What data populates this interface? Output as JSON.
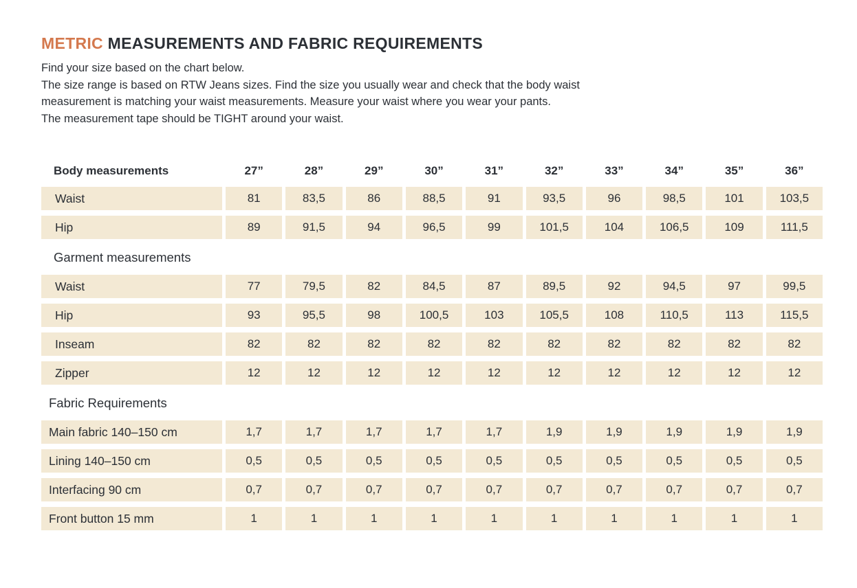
{
  "colors": {
    "accent": "#d4794e",
    "cell_background": "#f3e9d4",
    "text": "#2c3036"
  },
  "header": {
    "title_accent": "METRIC",
    "title_rest": " MEASUREMENTS AND FABRIC REQUIREMENTS",
    "intro_lines": [
      "Find your size based on the chart below.",
      "The size range is based on RTW Jeans sizes. Find the size you usually wear and check that the body waist",
      "measurement is matching your waist measurements. Measure your waist where you wear your pants.",
      "The measurement tape should be TIGHT around your waist."
    ]
  },
  "table": {
    "header_label": "Body measurements",
    "sizes": [
      "27”",
      "28”",
      "29”",
      "30”",
      "31”",
      "32”",
      "33”",
      "34”",
      "35”",
      "36”"
    ],
    "sections": [
      {
        "title": null,
        "rows": [
          {
            "label": "Waist",
            "values": [
              "81",
              "83,5",
              "86",
              "88,5",
              "91",
              "93,5",
              "96",
              "98,5",
              "101",
              "103,5"
            ]
          },
          {
            "label": "Hip",
            "values": [
              "89",
              "91,5",
              "94",
              "96,5",
              "99",
              "101,5",
              "104",
              "106,5",
              "109",
              "111,5"
            ]
          }
        ]
      },
      {
        "title": "Garment measurements",
        "rows": [
          {
            "label": "Waist",
            "values": [
              "77",
              "79,5",
              "82",
              "84,5",
              "87",
              "89,5",
              "92",
              "94,5",
              "97",
              "99,5"
            ]
          },
          {
            "label": "Hip",
            "values": [
              "93",
              "95,5",
              "98",
              "100,5",
              "103",
              "105,5",
              "108",
              "110,5",
              "113",
              "115,5"
            ]
          },
          {
            "label": "Inseam",
            "values": [
              "82",
              "82",
              "82",
              "82",
              "82",
              "82",
              "82",
              "82",
              "82",
              "82"
            ]
          },
          {
            "label": "Zipper",
            "values": [
              "12",
              "12",
              "12",
              "12",
              "12",
              "12",
              "12",
              "12",
              "12",
              "12"
            ]
          }
        ]
      },
      {
        "title": "Fabric Requirements",
        "rows": [
          {
            "label": "Main fabric 140–150 cm",
            "values": [
              "1,7",
              "1,7",
              "1,7",
              "1,7",
              "1,7",
              "1,9",
              "1,9",
              "1,9",
              "1,9",
              "1,9"
            ]
          },
          {
            "label": "Lining 140–150 cm",
            "values": [
              "0,5",
              "0,5",
              "0,5",
              "0,5",
              "0,5",
              "0,5",
              "0,5",
              "0,5",
              "0,5",
              "0,5"
            ]
          },
          {
            "label": "Interfacing 90 cm",
            "values": [
              "0,7",
              "0,7",
              "0,7",
              "0,7",
              "0,7",
              "0,7",
              "0,7",
              "0,7",
              "0,7",
              "0,7"
            ]
          },
          {
            "label": "Front button 15 mm",
            "values": [
              "1",
              "1",
              "1",
              "1",
              "1",
              "1",
              "1",
              "1",
              "1",
              "1"
            ]
          }
        ]
      }
    ]
  }
}
